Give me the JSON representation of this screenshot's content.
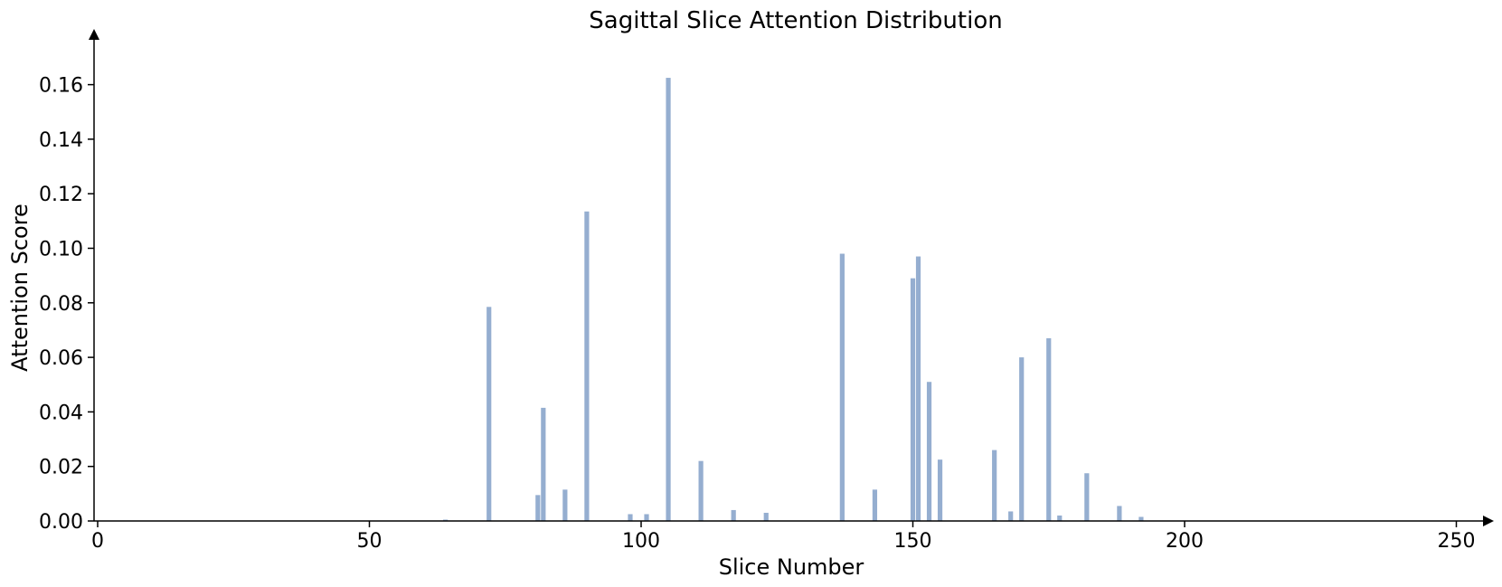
{
  "chart_data": {
    "type": "bar",
    "title": "Sagittal Slice Attention Distribution",
    "xlabel": "Slice Number",
    "ylabel": "Attention Score",
    "xlim": [
      0,
      256
    ],
    "ylim": [
      0,
      0.175
    ],
    "xticks": [
      0,
      50,
      100,
      150,
      200,
      250
    ],
    "xtick_labels": [
      "0",
      "50",
      "100",
      "150",
      "200",
      "250"
    ],
    "yticks": [
      0.0,
      0.02,
      0.04,
      0.06,
      0.08,
      0.1,
      0.12,
      0.14,
      0.16
    ],
    "ytick_labels": [
      "0.00",
      "0.02",
      "0.04",
      "0.06",
      "0.08",
      "0.10",
      "0.12",
      "0.14",
      "0.16"
    ],
    "grid": false,
    "bar_color": "#95aed0",
    "x": [
      64,
      72,
      81,
      82,
      86,
      90,
      98,
      101,
      105,
      111,
      117,
      123,
      137,
      143,
      150,
      151,
      153,
      155,
      165,
      168,
      170,
      175,
      177,
      182,
      188,
      192
    ],
    "values": [
      0.0005,
      0.0785,
      0.0095,
      0.0415,
      0.0115,
      0.1135,
      0.0025,
      0.0025,
      0.1625,
      0.022,
      0.004,
      0.003,
      0.098,
      0.0115,
      0.089,
      0.097,
      0.051,
      0.0225,
      0.026,
      0.0035,
      0.06,
      0.067,
      0.002,
      0.0175,
      0.0055,
      0.0015
    ]
  }
}
